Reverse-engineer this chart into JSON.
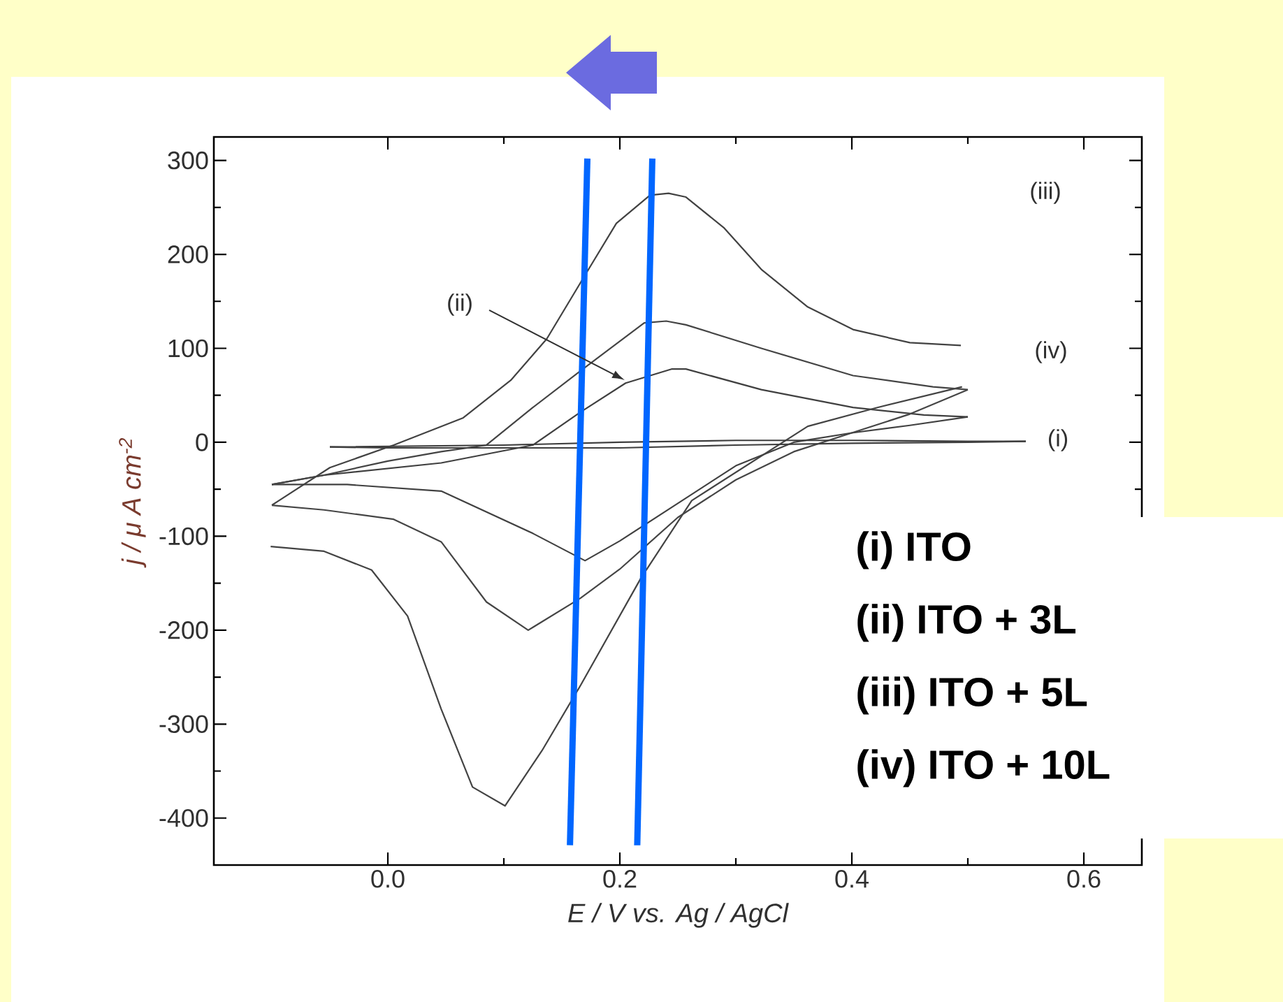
{
  "chart_data": {
    "type": "line",
    "xlabel": "E / V vs. Ag / AgCl",
    "ylabel": "j / μ A cm$^{-2}$",
    "xlim": [
      -0.15,
      0.65
    ],
    "ylim": [
      -450,
      325
    ],
    "xticks": [
      {
        "value": 0,
        "label": "0.0"
      },
      0.2,
      0.4,
      0.6
    ],
    "yticks": [
      -400,
      -300,
      -200,
      -100,
      0,
      100,
      200,
      300
    ],
    "marker": "none",
    "line_style": "solid",
    "series": [
      {
        "color": "#404040",
        "x": [
          -0.1,
          -0.055,
          0.046,
          0.125,
          0.166,
          0.205,
          0.245,
          0.257,
          0.322,
          0.401,
          0.462,
          0.5
        ],
        "values": [
          -45,
          -35,
          -22,
          -3,
          32,
          63,
          78,
          78,
          56,
          37,
          29,
          27
        ]
      },
      {
        "color": "#414141",
        "x": [
          0.5,
          0.45,
          0.4,
          0.35,
          0.3,
          0.25,
          0.2,
          0.17,
          0.125,
          0.046,
          -0.035,
          -0.1
        ],
        "values": [
          27,
          18,
          10,
          0,
          -25,
          -65,
          -105,
          -126,
          -97,
          -52,
          -45,
          -45
        ]
      },
      {
        "color": "#424242",
        "x": [
          -0.1,
          -0.095,
          -0.05,
          0.005,
          0.065,
          0.106,
          0.137,
          0.173,
          0.197,
          0.226,
          0.242,
          0.257,
          0.29,
          0.322,
          0.362,
          0.401,
          0.45,
          0.494
        ],
        "values": [
          -67,
          -63,
          -27,
          -3,
          26,
          66,
          110,
          184,
          233,
          263,
          265,
          261,
          228,
          184,
          144,
          120,
          106,
          103
        ]
      },
      {
        "color": "#434343",
        "x": [
          0.495,
          0.422,
          0.362,
          0.262,
          0.218,
          0.166,
          0.133,
          0.101,
          0.073,
          0.046,
          0.017,
          -0.014,
          -0.055,
          -0.101
        ],
        "values": [
          59,
          37,
          17,
          -62,
          -145,
          -259,
          -328,
          -387,
          -367,
          -284,
          -185,
          -136,
          -116,
          -111
        ]
      },
      {
        "color": "#444444",
        "x": [
          -0.1,
          -0.055,
          0.0,
          0.046,
          0.085,
          0.125,
          0.166,
          0.221,
          0.24,
          0.257,
          0.322,
          0.401,
          0.47,
          0.5
        ],
        "values": [
          -45,
          -35,
          -20,
          -10,
          -3,
          37,
          76,
          127,
          129,
          125,
          100,
          71,
          59,
          56
        ]
      },
      {
        "color": "#454545",
        "x": [
          0.5,
          0.45,
          0.4,
          0.35,
          0.3,
          0.25,
          0.2,
          0.166,
          0.121,
          0.085,
          0.046,
          0.005,
          -0.055,
          -0.1
        ],
        "values": [
          56,
          30,
          10,
          -10,
          -40,
          -80,
          -135,
          -166,
          -200,
          -170,
          -106,
          -82,
          -72,
          -67
        ]
      },
      {
        "color": "#3e3e3e",
        "x": [
          -0.05,
          0.1,
          0.2,
          0.3,
          0.4,
          0.5,
          0.55
        ],
        "values": [
          -5,
          -3,
          0,
          2,
          2,
          1,
          1
        ]
      },
      {
        "color": "#3f3f3f",
        "x": [
          0.55,
          0.5,
          0.4,
          0.3,
          0.2,
          0.1,
          0.0,
          -0.05
        ],
        "values": [
          1,
          0,
          -1,
          -3,
          -6,
          -6,
          -6,
          -5
        ]
      },
      {
        "color": "#0066ff",
        "x": [
          0.172,
          0.157
        ],
        "values": [
          302,
          -429
        ]
      },
      {
        "color": "#0066ff",
        "x": [
          0.228,
          0.215
        ],
        "values": [
          302,
          -429
        ]
      }
    ],
    "annotations": [
      "(i)",
      "(ii)",
      "(iii)",
      "(iv)",
      "(i) ITO",
      "(ii) ITO + 3L",
      "(iii) ITO + 5L",
      "(iv) ITO + 10L"
    ]
  }
}
